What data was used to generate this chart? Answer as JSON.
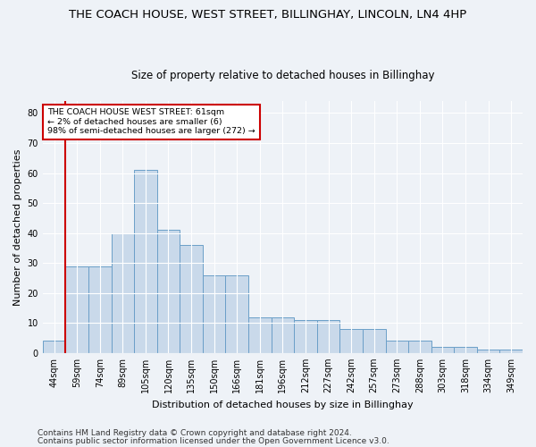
{
  "title": "THE COACH HOUSE, WEST STREET, BILLINGHAY, LINCOLN, LN4 4HP",
  "subtitle": "Size of property relative to detached houses in Billinghay",
  "xlabel": "Distribution of detached houses by size in Billinghay",
  "ylabel": "Number of detached properties",
  "bar_vals": [
    4,
    29,
    29,
    40,
    61,
    41,
    36,
    26,
    26,
    12,
    12,
    11,
    11,
    8,
    8,
    4,
    4,
    2,
    2,
    1,
    1
  ],
  "bar_labels": [
    "44sqm",
    "59sqm",
    "74sqm",
    "89sqm",
    "105sqm",
    "120sqm",
    "135sqm",
    "150sqm",
    "166sqm",
    "181sqm",
    "196sqm",
    "212sqm",
    "227sqm",
    "242sqm",
    "257sqm",
    "273sqm",
    "288sqm",
    "303sqm",
    "318sqm",
    "334sqm",
    "349sqm"
  ],
  "bar_color": "#c9d9ea",
  "bar_edge_color": "#6b9fc8",
  "annotation_box_text": "THE COACH HOUSE WEST STREET: 61sqm\n← 2% of detached houses are smaller (6)\n98% of semi-detached houses are larger (272) →",
  "annotation_box_edge_color": "#cc0000",
  "vline_color": "#cc0000",
  "vline_x_index": 1,
  "ylim": [
    0,
    84
  ],
  "yticks": [
    0,
    10,
    20,
    30,
    40,
    50,
    60,
    70,
    80
  ],
  "footer_line1": "Contains HM Land Registry data © Crown copyright and database right 2024.",
  "footer_line2": "Contains public sector information licensed under the Open Government Licence v3.0.",
  "background_color": "#eef2f7",
  "plot_background_color": "#eef2f7",
  "grid_color": "#ffffff",
  "title_fontsize": 9.5,
  "subtitle_fontsize": 8.5,
  "label_fontsize": 8,
  "tick_fontsize": 7,
  "annotation_fontsize": 6.8,
  "footer_fontsize": 6.5
}
